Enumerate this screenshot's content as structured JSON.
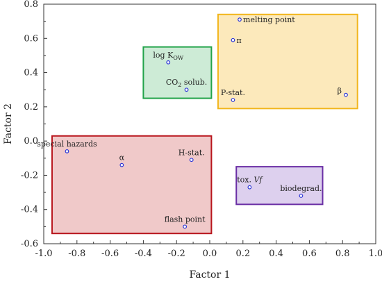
{
  "chart_data": {
    "type": "scatter",
    "xlabel": "Factor 1",
    "ylabel": "Factor 2",
    "xlim": [
      -1.0,
      1.0
    ],
    "ylim": [
      -0.6,
      0.8
    ],
    "xticks": [
      -1.0,
      -0.8,
      -0.6,
      -0.4,
      -0.2,
      0,
      0.2,
      0.4,
      0.6,
      0.8,
      1.0
    ],
    "xtick_labels": [
      "-1.0",
      "-0.8",
      "-0.6",
      "-0.4",
      "-0.2",
      "0.0",
      "0.2",
      "0.4",
      "0.6",
      "0.8",
      "1.0"
    ],
    "yticks": [
      -0.6,
      -0.4,
      -0.2,
      0,
      0.2,
      0.4,
      0.6,
      0.8
    ],
    "ytick_labels": [
      "-0.6",
      "-0.4",
      "-0.2",
      "0.0",
      "0.2",
      "0.4",
      "0.6",
      "0.8"
    ],
    "grid": false,
    "points": [
      {
        "label": "melting point",
        "x": 0.18,
        "y": 0.71,
        "anchor": "right"
      },
      {
        "label": "π",
        "x": 0.14,
        "y": 0.59,
        "anchor": "right"
      },
      {
        "label": "P-stat.",
        "x": 0.14,
        "y": 0.24,
        "anchor": "above"
      },
      {
        "label": "β",
        "x": 0.82,
        "y": 0.27,
        "anchor": "left"
      },
      {
        "label": "log K",
        "sub": "OW",
        "x": -0.25,
        "y": 0.46,
        "anchor": "above"
      },
      {
        "label": "CO",
        "sub": "2",
        "label_after": " solub.",
        "x": -0.14,
        "y": 0.3,
        "anchor": "above"
      },
      {
        "label": "special hazards",
        "x": -0.86,
        "y": -0.06,
        "anchor": "above"
      },
      {
        "label": "α",
        "x": -0.53,
        "y": -0.14,
        "anchor": "above"
      },
      {
        "label": "H-stat.",
        "x": -0.11,
        "y": -0.11,
        "anchor": "above"
      },
      {
        "label": "flash point",
        "x": -0.15,
        "y": -0.5,
        "anchor": "above"
      },
      {
        "label": "tox. ",
        "label_italic": "Vf",
        "x": 0.24,
        "y": -0.27,
        "anchor": "above"
      },
      {
        "label": "biodegrad.",
        "x": 0.55,
        "y": -0.32,
        "anchor": "above"
      }
    ],
    "groups": [
      {
        "x0": 0.05,
        "x1": 0.89,
        "y0": 0.19,
        "y1": 0.74,
        "fill": "#fce9bb",
        "stroke": "#f2b61c"
      },
      {
        "x0": -0.4,
        "x1": 0.01,
        "y0": 0.25,
        "y1": 0.55,
        "fill": "#cdebd6",
        "stroke": "#22a34a"
      },
      {
        "x0": -0.95,
        "x1": 0.01,
        "y0": -0.54,
        "y1": 0.03,
        "fill": "#f0c9c9",
        "stroke": "#b8141b"
      },
      {
        "x0": 0.16,
        "x1": 0.68,
        "y0": -0.37,
        "y1": -0.15,
        "fill": "#ddd0ee",
        "stroke": "#6a2fa5"
      }
    ],
    "marker_color": "#2b35d6"
  }
}
